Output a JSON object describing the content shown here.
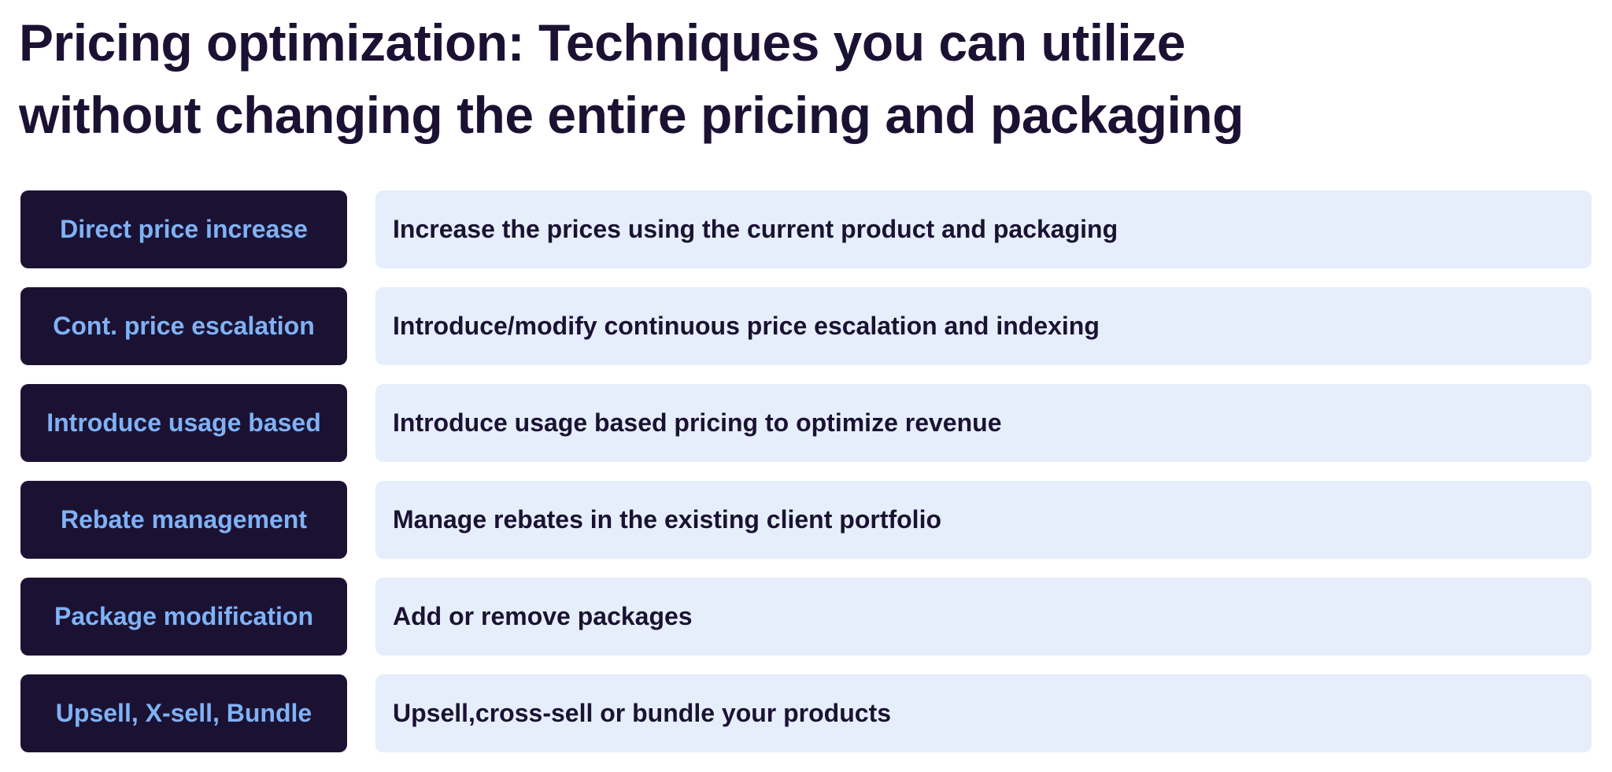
{
  "header": {
    "title_lines": [
      "Pricing optimization: Techniques you can utilize",
      "without changing the entire pricing and packaging"
    ]
  },
  "rows": [
    {
      "label": "Direct price increase",
      "description": "Increase the prices using the current product and packaging"
    },
    {
      "label": "Cont. price escalation",
      "description": "Introduce/modify continuous price escalation and indexing"
    },
    {
      "label": "Introduce usage based",
      "description": "Introduce usage based pricing to optimize revenue"
    },
    {
      "label": "Rebate management",
      "description": "Manage rebates in the existing client portfolio"
    },
    {
      "label": "Package modification",
      "description": "Add or remove packages"
    },
    {
      "label": "Upsell, X-sell, Bundle",
      "description": "Upsell,cross-sell or bundle your products"
    }
  ]
}
